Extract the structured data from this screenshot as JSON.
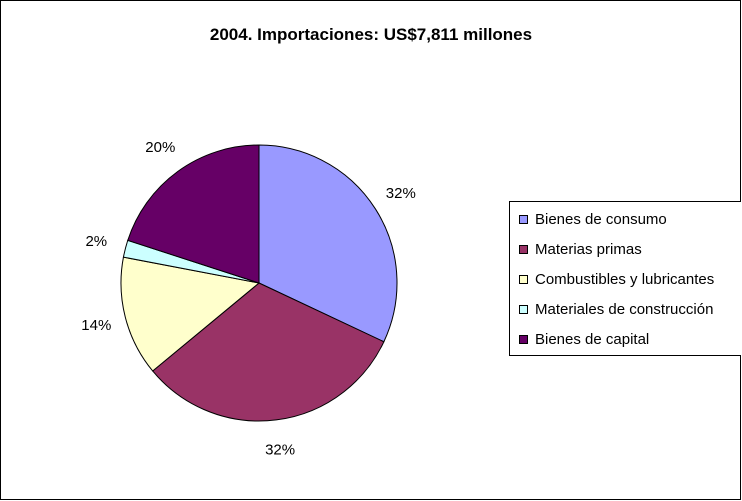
{
  "chart_data": {
    "type": "pie",
    "title": "2004.  Importaciones: US$7,811 millones",
    "slices": [
      {
        "name": "Bienes de consumo",
        "value": 32,
        "label": "32%",
        "color": "#9999FF"
      },
      {
        "name": "Materias primas",
        "value": 32,
        "label": "32%",
        "color": "#993366"
      },
      {
        "name": "Combustibles y lubricantes",
        "value": 14,
        "label": "14%",
        "color": "#FFFFCC"
      },
      {
        "name": "Materiales de construcción",
        "value": 2,
        "label": "2%",
        "color": "#CCFFFF"
      },
      {
        "name": "Bienes de capital",
        "value": 20,
        "label": "20%",
        "color": "#660066"
      }
    ],
    "legend_position": "right"
  }
}
